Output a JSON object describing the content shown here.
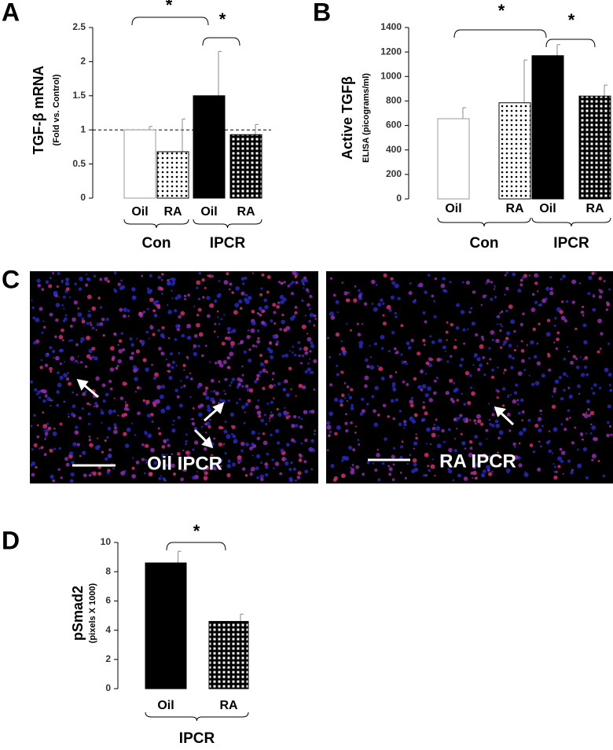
{
  "chart_data": [
    {
      "type": "bar",
      "panel": "A",
      "ylabel": "TGF-β mRNA",
      "ylabel_sub": "(Fold vs. Control)",
      "categories": [
        "Oil",
        "RA",
        "Oil",
        "RA"
      ],
      "groups": [
        "Con",
        "IPCR"
      ],
      "values": [
        1.0,
        0.68,
        1.5,
        0.93
      ],
      "errors": [
        0.05,
        0.48,
        0.65,
        0.15
      ],
      "fills": [
        "white",
        "dots",
        "black",
        "holes"
      ],
      "ylim": [
        0,
        2.5
      ],
      "yticks": [
        0,
        0.5,
        1,
        1.5,
        2,
        2.5
      ],
      "reference_line": 1,
      "significance_labels": [
        "*",
        "*"
      ]
    },
    {
      "type": "bar",
      "panel": "B",
      "ylabel": "Active TGFβ",
      "ylabel_sub": "ELISA (picograms/ml)",
      "categories": [
        "Oil",
        "RA",
        "Oil",
        "RA"
      ],
      "groups": [
        "Con",
        "IPCR"
      ],
      "values": [
        655,
        785,
        1170,
        840
      ],
      "errors": [
        90,
        350,
        90,
        90
      ],
      "fills": [
        "white",
        "dots",
        "black",
        "holes"
      ],
      "ylim": [
        0,
        1400
      ],
      "yticks": [
        0,
        200,
        400,
        600,
        800,
        1000,
        1200,
        1400
      ],
      "significance_labels": [
        "*",
        "*"
      ]
    },
    {
      "type": "bar",
      "panel": "D",
      "ylabel": "pSmad2",
      "ylabel_sub": "(pixels X 1000)",
      "categories": [
        "Oil",
        "RA"
      ],
      "groups": [
        "IPCR"
      ],
      "values": [
        8.6,
        4.6
      ],
      "errors": [
        0.8,
        0.5
      ],
      "fills": [
        "black",
        "holes"
      ],
      "ylim": [
        0,
        10
      ],
      "yticks": [
        0,
        2,
        4,
        6,
        8,
        10
      ],
      "significance_labels": [
        "*"
      ]
    }
  ],
  "micrographs": {
    "panel": "C",
    "labels": [
      "Oil IPCR",
      "RA IPCR"
    ]
  }
}
